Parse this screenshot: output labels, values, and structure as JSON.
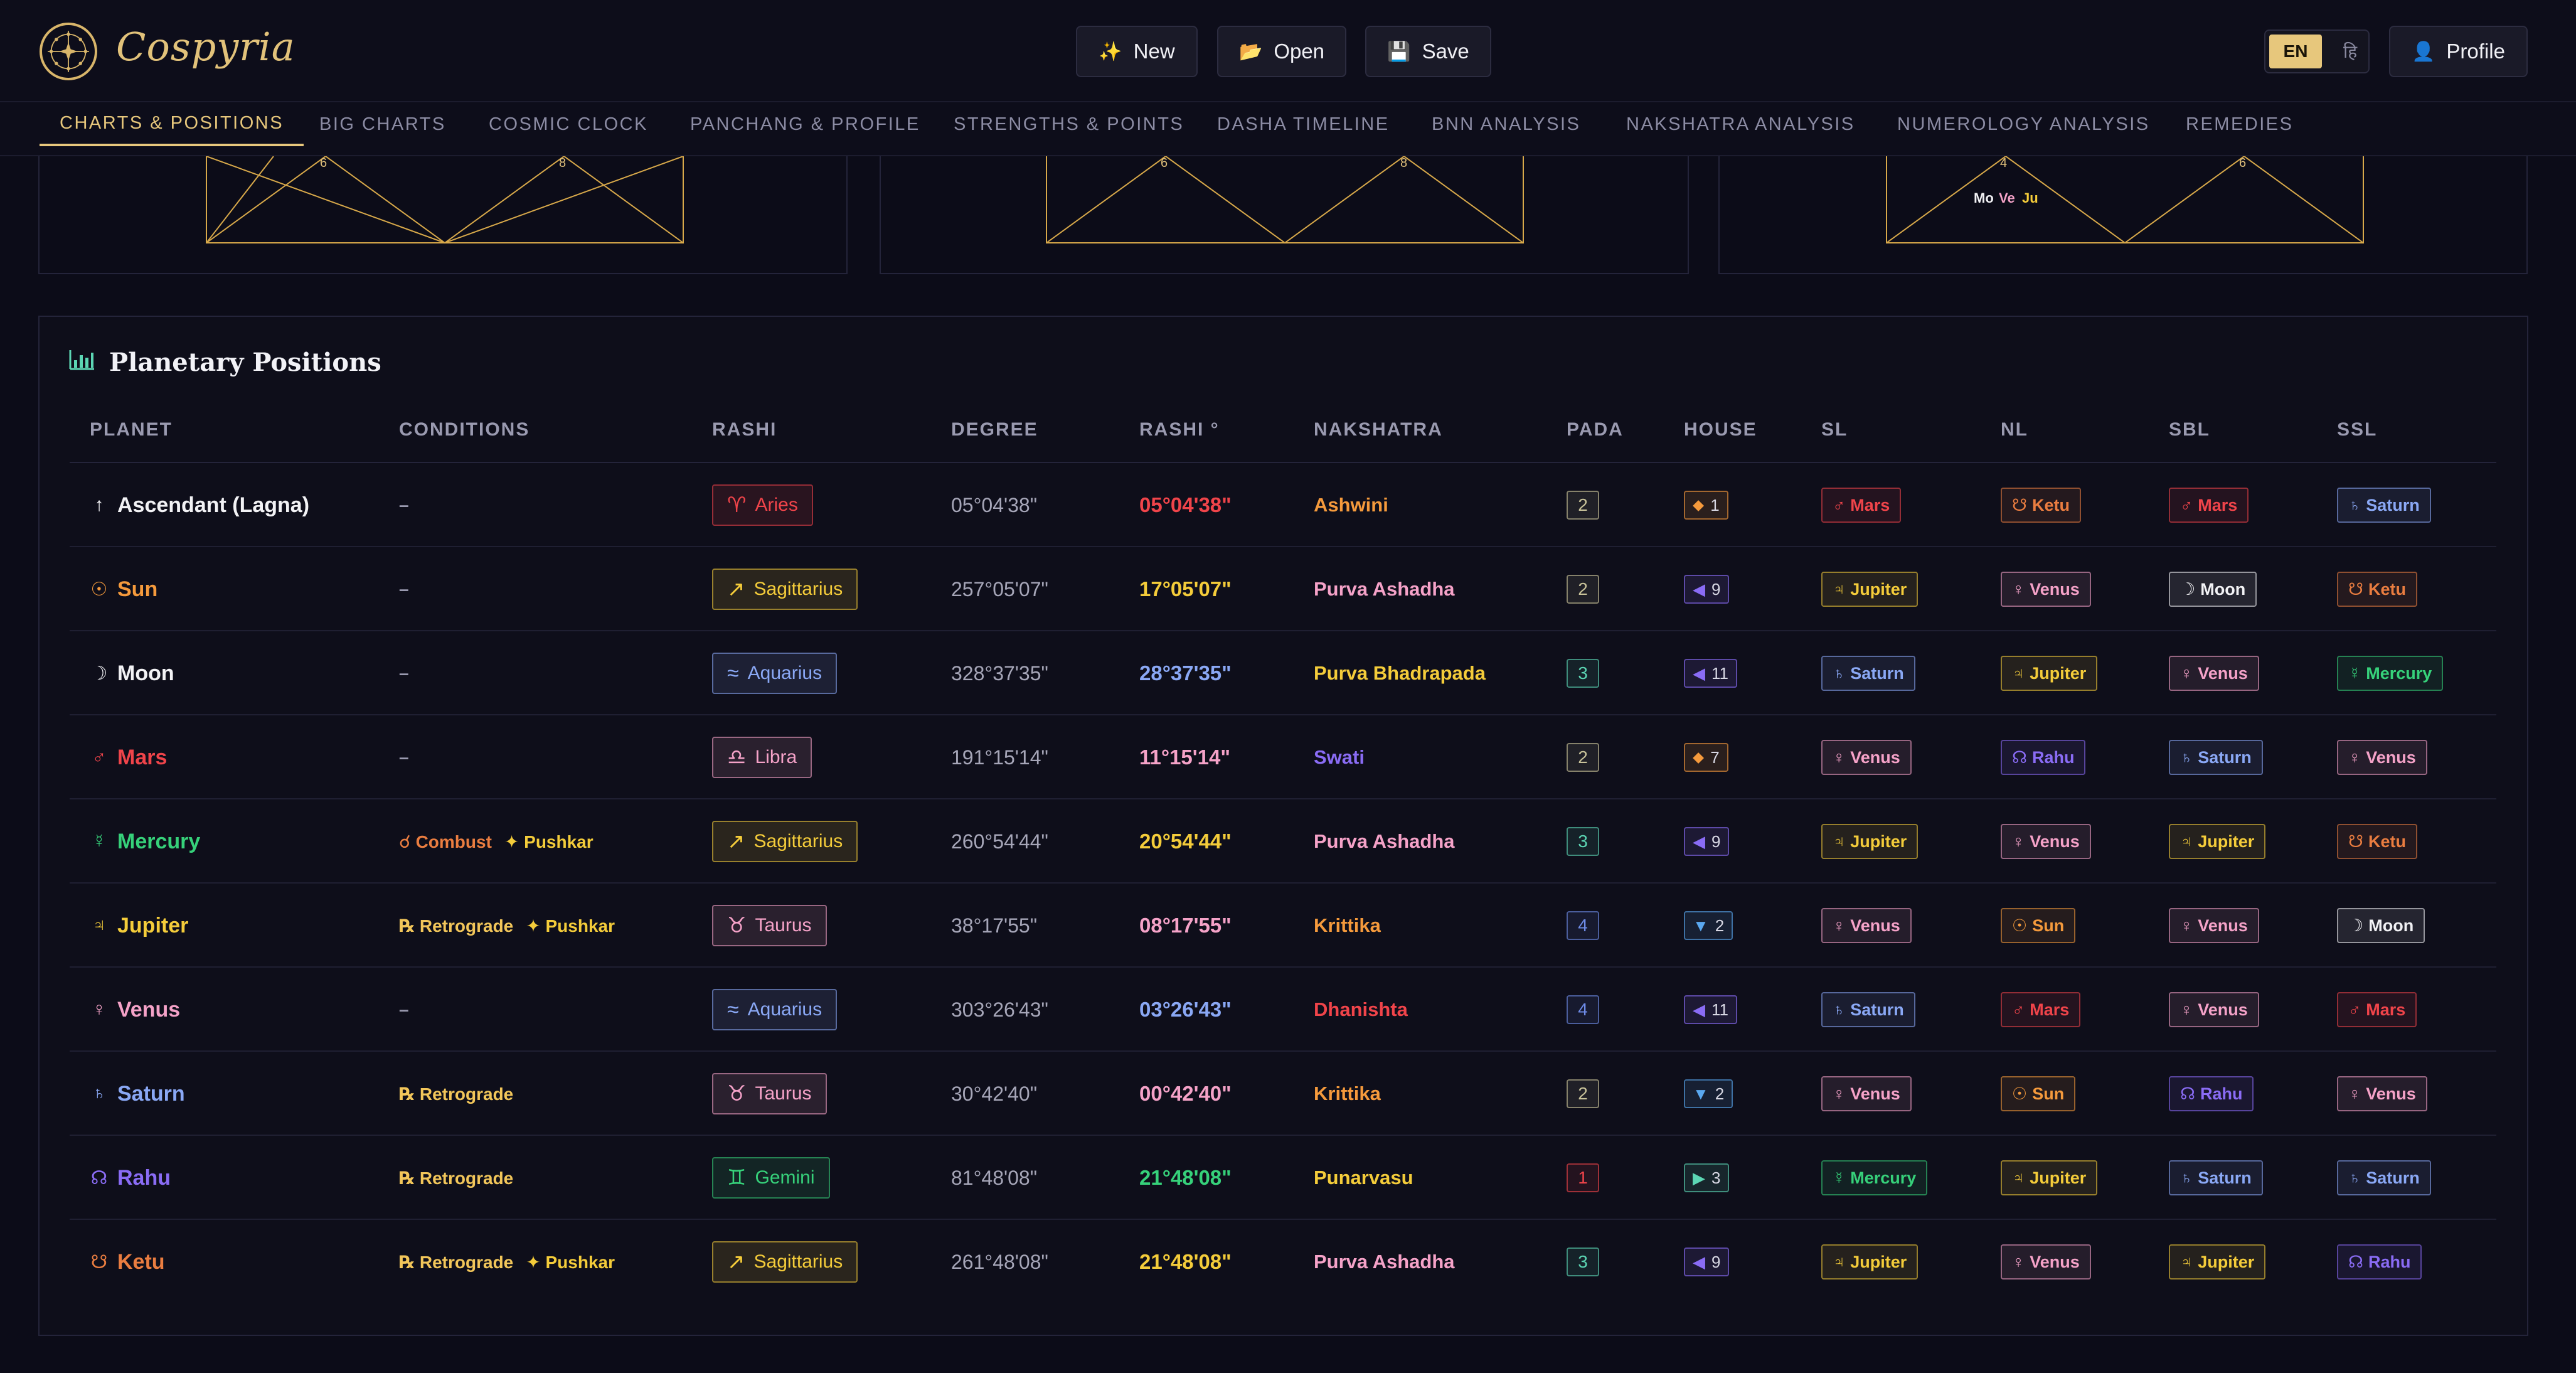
{
  "app": {
    "brand": "Cospyria"
  },
  "header": {
    "new_label": "New",
    "new_icon": "✨",
    "open_label": "Open",
    "open_icon": "📂",
    "save_label": "Save",
    "save_icon": "💾",
    "lang_en": "EN",
    "lang_hi": "हि",
    "profile_label": "Profile",
    "profile_icon": "👤"
  },
  "tabs": [
    "CHARTS & POSITIONS",
    "BIG CHARTS",
    "COSMIC CLOCK",
    "PANCHANG & PROFILE",
    "STRENGTHS & POINTS",
    "DASHA TIMELINE",
    "BNN ANALYSIS",
    "NAKSHATRA ANALYSIS",
    "NUMEROLOGY ANALYSIS",
    "REMEDIES"
  ],
  "charts": [
    {
      "left_num": "6",
      "right_num": "8",
      "planets": []
    },
    {
      "left_num": "6",
      "right_num": "8",
      "planets": []
    },
    {
      "left_num": "4",
      "right_num": "6",
      "planets": [
        "Mo",
        "Ve",
        "Ju"
      ]
    }
  ],
  "panel": {
    "title": "Planetary Positions",
    "headers": [
      "PLANET",
      "CONDITIONS",
      "RASHI",
      "DEGREE",
      "RASHI °",
      "NAKSHATRA",
      "PADA",
      "HOUSE",
      "SL",
      "NL",
      "SBL",
      "SSL"
    ]
  },
  "colors": {
    "red": "#f0444a",
    "orange": "#f59a3c",
    "white": "#f2f2f5",
    "yellow": "#f4cc3a",
    "green": "#36d17a",
    "blue": "#8aa8f5",
    "pink": "#f5a2c8",
    "violet": "#8a6cf5",
    "ketu": "#ea7d40",
    "teal": "#5cd6b4"
  },
  "rows": [
    {
      "planet": "Ascendant (Lagna)",
      "glyph": "↑",
      "color": "white",
      "conditions": [
        {
          "text": "–",
          "color": "muted"
        }
      ],
      "rashi": "Aries",
      "rashi_glyph": "♈",
      "rashi_color": "red",
      "degree": "05°04'38\"",
      "rashi_deg": "05°04'38\"",
      "rashi_deg_color": "red",
      "nakshatra": "Ashwini",
      "nak_color": "orange",
      "pada": "2",
      "pada_color": "pada2",
      "house": "1",
      "house_glyph": "⬥",
      "house_color": "orange",
      "sl": {
        "name": "Mars",
        "glyph": "♂",
        "color": "red"
      },
      "nl": {
        "name": "Ketu",
        "glyph": "☋",
        "color": "ketu"
      },
      "sbl": {
        "name": "Mars",
        "glyph": "♂",
        "color": "red"
      },
      "ssl": {
        "name": "Saturn",
        "glyph": "♄",
        "color": "blue"
      }
    },
    {
      "planet": "Sun",
      "glyph": "☉",
      "color": "orange",
      "conditions": [
        {
          "text": "–",
          "color": "muted"
        }
      ],
      "rashi": "Sagittarius",
      "rashi_glyph": "↗",
      "rashi_color": "yellow",
      "degree": "257°05'07\"",
      "rashi_deg": "17°05'07\"",
      "rashi_deg_color": "yellow",
      "nakshatra": "Purva Ashadha",
      "nak_color": "pink",
      "pada": "2",
      "pada_color": "pada2",
      "house": "9",
      "house_glyph": "◀",
      "house_color": "violet",
      "sl": {
        "name": "Jupiter",
        "glyph": "♃",
        "color": "yellow"
      },
      "nl": {
        "name": "Venus",
        "glyph": "♀",
        "color": "pink"
      },
      "sbl": {
        "name": "Moon",
        "glyph": "☽",
        "color": "white"
      },
      "ssl": {
        "name": "Ketu",
        "glyph": "☋",
        "color": "ketu"
      }
    },
    {
      "planet": "Moon",
      "glyph": "☽",
      "color": "white",
      "conditions": [
        {
          "text": "–",
          "color": "muted"
        }
      ],
      "rashi": "Aquarius",
      "rashi_glyph": "≈",
      "rashi_color": "blue",
      "degree": "328°37'35\"",
      "rashi_deg": "28°37'35\"",
      "rashi_deg_color": "blue",
      "nakshatra": "Purva Bhadrapada",
      "nak_color": "yellow",
      "pada": "3",
      "pada_color": "pada3",
      "house": "11",
      "house_glyph": "◀",
      "house_color": "violet",
      "sl": {
        "name": "Saturn",
        "glyph": "♄",
        "color": "blue"
      },
      "nl": {
        "name": "Jupiter",
        "glyph": "♃",
        "color": "yellow"
      },
      "sbl": {
        "name": "Venus",
        "glyph": "♀",
        "color": "pink"
      },
      "ssl": {
        "name": "Mercury",
        "glyph": "☿",
        "color": "green"
      }
    },
    {
      "planet": "Mars",
      "glyph": "♂",
      "color": "red",
      "conditions": [
        {
          "text": "–",
          "color": "muted"
        }
      ],
      "rashi": "Libra",
      "rashi_glyph": "♎",
      "rashi_color": "pink",
      "degree": "191°15'14\"",
      "rashi_deg": "11°15'14\"",
      "rashi_deg_color": "pink",
      "nakshatra": "Swati",
      "nak_color": "violet",
      "pada": "2",
      "pada_color": "pada2",
      "house": "7",
      "house_glyph": "⬥",
      "house_color": "orange",
      "sl": {
        "name": "Venus",
        "glyph": "♀",
        "color": "pink"
      },
      "nl": {
        "name": "Rahu",
        "glyph": "☊",
        "color": "violet"
      },
      "sbl": {
        "name": "Saturn",
        "glyph": "♄",
        "color": "blue"
      },
      "ssl": {
        "name": "Venus",
        "glyph": "♀",
        "color": "pink"
      }
    },
    {
      "planet": "Mercury",
      "glyph": "☿",
      "color": "green",
      "conditions": [
        {
          "text": "☌ Combust",
          "color": "ketu"
        },
        {
          "text": "✦ Pushkar",
          "color": "yellow"
        }
      ],
      "rashi": "Sagittarius",
      "rashi_glyph": "↗",
      "rashi_color": "yellow",
      "degree": "260°54'44\"",
      "rashi_deg": "20°54'44\"",
      "rashi_deg_color": "yellow",
      "nakshatra": "Purva Ashadha",
      "nak_color": "pink",
      "pada": "3",
      "pada_color": "pada3",
      "house": "9",
      "house_glyph": "◀",
      "house_color": "violet",
      "sl": {
        "name": "Jupiter",
        "glyph": "♃",
        "color": "yellow"
      },
      "nl": {
        "name": "Venus",
        "glyph": "♀",
        "color": "pink"
      },
      "sbl": {
        "name": "Jupiter",
        "glyph": "♃",
        "color": "yellow"
      },
      "ssl": {
        "name": "Ketu",
        "glyph": "☋",
        "color": "ketu"
      }
    },
    {
      "planet": "Jupiter",
      "glyph": "♃",
      "color": "yellow",
      "conditions": [
        {
          "text": "℞ Retrograde",
          "color": "gold"
        },
        {
          "text": "✦ Pushkar",
          "color": "yellow"
        }
      ],
      "rashi": "Taurus",
      "rashi_glyph": "♉",
      "rashi_color": "pink",
      "degree": "38°17'55\"",
      "rashi_deg": "08°17'55\"",
      "rashi_deg_color": "pink",
      "nakshatra": "Krittika",
      "nak_color": "orange",
      "pada": "4",
      "pada_color": "pada4",
      "house": "2",
      "house_glyph": "▼",
      "house_color": "sky",
      "sl": {
        "name": "Venus",
        "glyph": "♀",
        "color": "pink"
      },
      "nl": {
        "name": "Sun",
        "glyph": "☉",
        "color": "orange"
      },
      "sbl": {
        "name": "Venus",
        "glyph": "♀",
        "color": "pink"
      },
      "ssl": {
        "name": "Moon",
        "glyph": "☽",
        "color": "white"
      }
    },
    {
      "planet": "Venus",
      "glyph": "♀",
      "color": "pink",
      "conditions": [
        {
          "text": "–",
          "color": "muted"
        }
      ],
      "rashi": "Aquarius",
      "rashi_glyph": "≈",
      "rashi_color": "blue",
      "degree": "303°26'43\"",
      "rashi_deg": "03°26'43\"",
      "rashi_deg_color": "blue",
      "nakshatra": "Dhanishta",
      "nak_color": "red",
      "pada": "4",
      "pada_color": "pada4",
      "house": "11",
      "house_glyph": "◀",
      "house_color": "violet",
      "sl": {
        "name": "Saturn",
        "glyph": "♄",
        "color": "blue"
      },
      "nl": {
        "name": "Mars",
        "glyph": "♂",
        "color": "red"
      },
      "sbl": {
        "name": "Venus",
        "glyph": "♀",
        "color": "pink"
      },
      "ssl": {
        "name": "Mars",
        "glyph": "♂",
        "color": "red"
      }
    },
    {
      "planet": "Saturn",
      "glyph": "♄",
      "color": "blue",
      "conditions": [
        {
          "text": "℞ Retrograde",
          "color": "gold"
        }
      ],
      "rashi": "Taurus",
      "rashi_glyph": "♉",
      "rashi_color": "pink",
      "degree": "30°42'40\"",
      "rashi_deg": "00°42'40\"",
      "rashi_deg_color": "pink",
      "nakshatra": "Krittika",
      "nak_color": "orange",
      "pada": "2",
      "pada_color": "pada2",
      "house": "2",
      "house_glyph": "▼",
      "house_color": "sky",
      "sl": {
        "name": "Venus",
        "glyph": "♀",
        "color": "pink"
      },
      "nl": {
        "name": "Sun",
        "glyph": "☉",
        "color": "orange"
      },
      "sbl": {
        "name": "Rahu",
        "glyph": "☊",
        "color": "violet"
      },
      "ssl": {
        "name": "Venus",
        "glyph": "♀",
        "color": "pink"
      }
    },
    {
      "planet": "Rahu",
      "glyph": "☊",
      "color": "violet",
      "conditions": [
        {
          "text": "℞ Retrograde",
          "color": "gold"
        }
      ],
      "rashi": "Gemini",
      "rashi_glyph": "♊",
      "rashi_color": "green",
      "degree": "81°48'08\"",
      "rashi_deg": "21°48'08\"",
      "rashi_deg_color": "green",
      "nakshatra": "Punarvasu",
      "nak_color": "yellow",
      "pada": "1",
      "pada_color": "pada1",
      "house": "3",
      "house_glyph": "▶",
      "house_color": "teal",
      "sl": {
        "name": "Mercury",
        "glyph": "☿",
        "color": "green"
      },
      "nl": {
        "name": "Jupiter",
        "glyph": "♃",
        "color": "yellow"
      },
      "sbl": {
        "name": "Saturn",
        "glyph": "♄",
        "color": "blue"
      },
      "ssl": {
        "name": "Saturn",
        "glyph": "♄",
        "color": "blue"
      }
    },
    {
      "planet": "Ketu",
      "glyph": "☋",
      "color": "ketu",
      "conditions": [
        {
          "text": "℞ Retrograde",
          "color": "gold"
        },
        {
          "text": "✦ Pushkar",
          "color": "yellow"
        }
      ],
      "rashi": "Sagittarius",
      "rashi_glyph": "↗",
      "rashi_color": "yellow",
      "degree": "261°48'08\"",
      "rashi_deg": "21°48'08\"",
      "rashi_deg_color": "yellow",
      "nakshatra": "Purva Ashadha",
      "nak_color": "pink",
      "pada": "3",
      "pada_color": "pada3",
      "house": "9",
      "house_glyph": "◀",
      "house_color": "violet",
      "sl": {
        "name": "Jupiter",
        "glyph": "♃",
        "color": "yellow"
      },
      "nl": {
        "name": "Venus",
        "glyph": "♀",
        "color": "pink"
      },
      "sbl": {
        "name": "Jupiter",
        "glyph": "♃",
        "color": "yellow"
      },
      "ssl": {
        "name": "Rahu",
        "glyph": "☊",
        "color": "violet"
      }
    }
  ]
}
